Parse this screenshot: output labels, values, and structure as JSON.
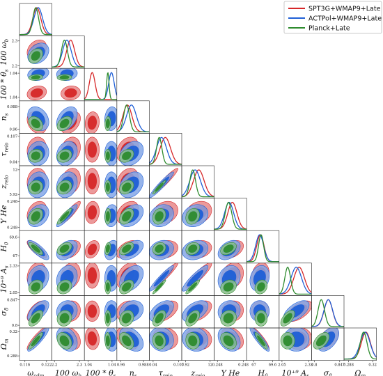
{
  "chart_data": {
    "type": "corner",
    "parameters": [
      {
        "key": "omega_cdm",
        "label": "ω_cdm",
        "range": [
          0.1145,
          0.1235
        ],
        "ticks": [
          "0.116",
          "0.122"
        ],
        "tick_values": [
          0.116,
          0.122
        ]
      },
      {
        "key": "omega_b",
        "label": "100 ω_b",
        "range": [
          2.19,
          2.32
        ],
        "ticks": [
          "2.2",
          "2.3"
        ],
        "tick_values": [
          2.2,
          2.3
        ]
      },
      {
        "key": "theta_s",
        "label": "100 * θ_s",
        "range": [
          1.0399,
          1.0426
        ],
        "ticks": [
          "1.04",
          "1.04"
        ],
        "tick_values": [
          1.0402,
          1.0422
        ]
      },
      {
        "key": "n_s",
        "label": "n_s",
        "range": [
          0.955,
          0.995
        ],
        "ticks": [
          "0.96",
          "0.988"
        ],
        "tick_values": [
          0.96,
          0.988
        ]
      },
      {
        "key": "tau_reio",
        "label": "τ_reio",
        "range": [
          0.03,
          0.115
        ],
        "ticks": [
          "0.04",
          "0.107"
        ],
        "tick_values": [
          0.04,
          0.107
        ]
      },
      {
        "key": "z_reio",
        "label": "z_reio",
        "range": [
          5.0,
          13.0
        ],
        "ticks": [
          "5.92",
          "12"
        ],
        "tick_values": [
          5.92,
          12.0
        ]
      },
      {
        "key": "YHe",
        "label": "Y He",
        "range": [
          0.2478,
          0.2483
        ],
        "ticks": [
          "0.248",
          "0.248"
        ],
        "tick_values": [
          0.24785,
          0.24825
        ]
      },
      {
        "key": "H0",
        "label": "H_0",
        "range": [
          66.0,
          70.5
        ],
        "ticks": [
          "67",
          "69.6"
        ],
        "tick_values": [
          67.0,
          69.6
        ]
      },
      {
        "key": "As",
        "label": "10^{+9} A_s",
        "range": [
          2.02,
          2.36
        ],
        "ticks": [
          "2.05",
          "2.33"
        ],
        "tick_values": [
          2.05,
          2.33
        ]
      },
      {
        "key": "sigma8",
        "label": "σ_8",
        "range": [
          0.795,
          0.855
        ],
        "ticks": [
          "0.8",
          "0.847"
        ],
        "tick_values": [
          0.8,
          0.847
        ]
      },
      {
        "key": "Omega_m",
        "label": "Ω_m",
        "range": [
          0.282,
          0.325
        ],
        "ticks": [
          "0.288",
          "0.32"
        ],
        "tick_values": [
          0.288,
          0.32
        ]
      }
    ],
    "series": [
      {
        "name": "SPT3G+WMAP9+Late",
        "color": "#d62728",
        "mean": [
          0.1193,
          2.265,
          1.04055,
          0.968,
          0.072,
          9.2,
          0.24808,
          67.9,
          2.23,
          0.826,
          0.311
        ],
        "sigma": [
          0.0011,
          0.016,
          0.00024,
          0.0055,
          0.0135,
          1.3,
          7e-05,
          0.5,
          0.055,
          0.0078,
          0.006
        ]
      },
      {
        "name": "ACTPol+WMAP9+Late",
        "color": "#1f5fd6",
        "mean": [
          0.1197,
          2.25,
          1.04215,
          0.973,
          0.062,
          8.3,
          0.24803,
          67.8,
          2.2,
          0.826,
          0.31
        ],
        "sigma": [
          0.0012,
          0.017,
          0.00023,
          0.006,
          0.013,
          1.3,
          7e-05,
          0.55,
          0.055,
          0.008,
          0.0065
        ]
      },
      {
        "name": "Planck+Late",
        "color": "#2e8b2e",
        "mean": [
          0.119,
          2.24,
          1.04185,
          0.967,
          0.056,
          7.7,
          0.24802,
          68.0,
          2.11,
          0.813,
          0.308
        ],
        "sigma": [
          0.0008,
          0.012,
          0.0001,
          0.0036,
          0.007,
          0.7,
          5e-05,
          0.35,
          0.03,
          0.006,
          0.0045
        ]
      }
    ],
    "correlations": [
      [
        1,
        0.3,
        0.2,
        -0.3,
        0.1,
        0.1,
        0.3,
        -0.8,
        0.2,
        0.6,
        0.9
      ],
      [
        0.3,
        1,
        0.1,
        0.4,
        0.2,
        0.2,
        0.9,
        0.4,
        0.2,
        0.1,
        -0.3
      ],
      [
        0.2,
        0.1,
        1,
        0.1,
        0.0,
        0.0,
        0.1,
        0.3,
        0.0,
        0.0,
        -0.1
      ],
      [
        -0.3,
        0.4,
        0.1,
        1,
        0.3,
        0.3,
        0.4,
        0.5,
        0.4,
        0.2,
        -0.4
      ],
      [
        0.1,
        0.2,
        0.0,
        0.3,
        1,
        0.95,
        0.2,
        0.2,
        0.95,
        0.5,
        -0.1
      ],
      [
        0.1,
        0.2,
        0.0,
        0.3,
        0.95,
        1,
        0.2,
        0.2,
        0.9,
        0.5,
        -0.1
      ],
      [
        0.3,
        0.9,
        0.1,
        0.4,
        0.2,
        0.2,
        1,
        0.4,
        0.2,
        0.1,
        -0.3
      ],
      [
        -0.8,
        0.4,
        0.3,
        0.5,
        0.2,
        0.2,
        0.4,
        1,
        0.2,
        0.0,
        -0.9
      ],
      [
        0.2,
        0.2,
        0.0,
        0.4,
        0.95,
        0.9,
        0.2,
        0.2,
        1,
        0.6,
        0.0
      ],
      [
        0.6,
        0.1,
        0.0,
        0.2,
        0.5,
        0.5,
        0.1,
        0.0,
        0.6,
        1,
        0.5
      ],
      [
        0.9,
        -0.3,
        -0.1,
        -0.4,
        -0.1,
        -0.1,
        -0.3,
        -0.9,
        0.0,
        0.5,
        1
      ]
    ],
    "contour_levels": [
      "68%",
      "95%"
    ],
    "legend": {
      "position": "top-right",
      "entries": [
        "SPT3G+WMAP9+Late",
        "ACTPol+WMAP9+Late",
        "Planck+Late"
      ]
    },
    "grid": false
  }
}
